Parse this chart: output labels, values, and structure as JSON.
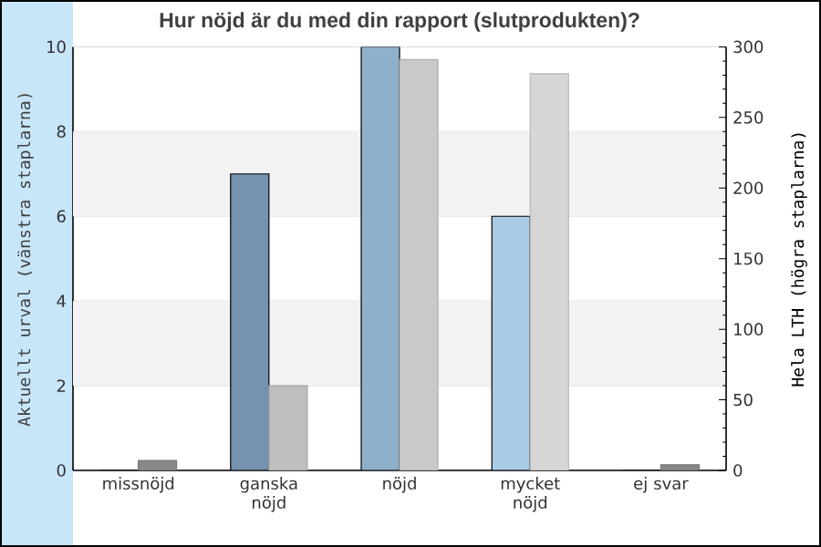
{
  "chart_data": {
    "type": "bar",
    "title": "Hur nöjd är du med din rapport (slutprodukten)?",
    "ylabel": "Aktuellt urval (vänstra staplarna)",
    "y2label": "Hela LTH (högra staplarna)",
    "categories": [
      "missnöjd",
      "ganska nöjd",
      "nöjd",
      "mycket nöjd",
      "ej svar"
    ],
    "series": [
      {
        "colors": [
          "#7593ae",
          "#7593ae",
          "#8fb0cb",
          "#aacbe6",
          "#aacbe6"
        ],
        "values": [
          0,
          7,
          10,
          6,
          0
        ]
      },
      {
        "axis": "y2",
        "colors": [
          "#888888",
          "#bfbfbf",
          "#c9c9c9",
          "#d6d6d6",
          "#888888"
        ],
        "values": [
          7,
          60,
          291,
          281,
          4
        ]
      }
    ],
    "ylim": [
      0,
      10
    ],
    "yticks": [
      0,
      2,
      4,
      6,
      8,
      10
    ],
    "y2lim": [
      0,
      300
    ],
    "y2ticks": [
      0,
      50,
      100,
      150,
      200,
      250,
      300
    ],
    "grid": "y"
  }
}
